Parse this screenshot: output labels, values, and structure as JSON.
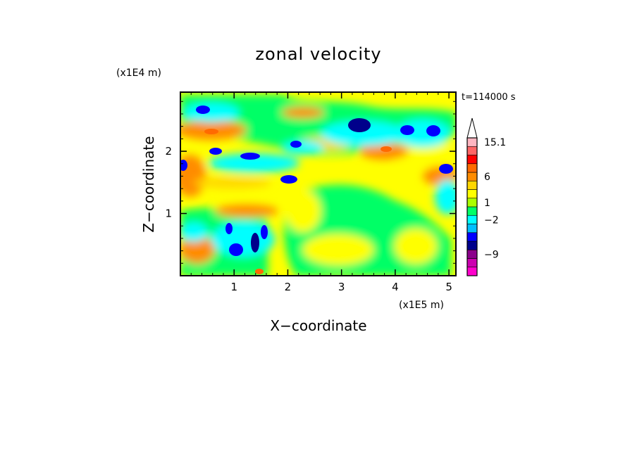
{
  "chart_data": {
    "type": "heatmap",
    "title": "zonal velocity",
    "xlabel": "X−coordinate",
    "ylabel": "Z−coordinate",
    "x_scale_label": "(x1E5 m)",
    "y_scale_label": "(x1E4 m)",
    "time_label": "t=114000 s",
    "xlim": [
      0,
      5.13
    ],
    "ylim": [
      0,
      2.95
    ],
    "x_ticks": [
      1,
      2,
      3,
      4,
      5
    ],
    "y_ticks": [
      1,
      2
    ],
    "x_tick_labels": [
      "1",
      "2",
      "3",
      "4",
      "5"
    ],
    "y_tick_labels": [
      "1",
      "2"
    ],
    "colorbar": {
      "colors": [
        "#ff00cc",
        "#cc00b0",
        "#8b008b",
        "#00008b",
        "#0000ff",
        "#00bfff",
        "#00ffff",
        "#00ff66",
        "#aaff00",
        "#ffff00",
        "#ffd700",
        "#ff8c00",
        "#ff6a00",
        "#ff0000",
        "#ff6666",
        "#ffb6c1",
        "#ffffff"
      ],
      "labels": [
        "−9",
        "−2",
        "1",
        "6",
        "15.1"
      ],
      "label_values": [
        -9,
        -2,
        1,
        6,
        15.1
      ]
    },
    "field_summary": {
      "dominant": "weak flow (yellow/green, about -1 to 2)",
      "positive_bands": "orange/red layers near z 1.5-2.5 and on left edge",
      "negative_cells": "blue patches near z 2.0-2.7 and below z 0.8 around x 1.0-1.5"
    }
  }
}
